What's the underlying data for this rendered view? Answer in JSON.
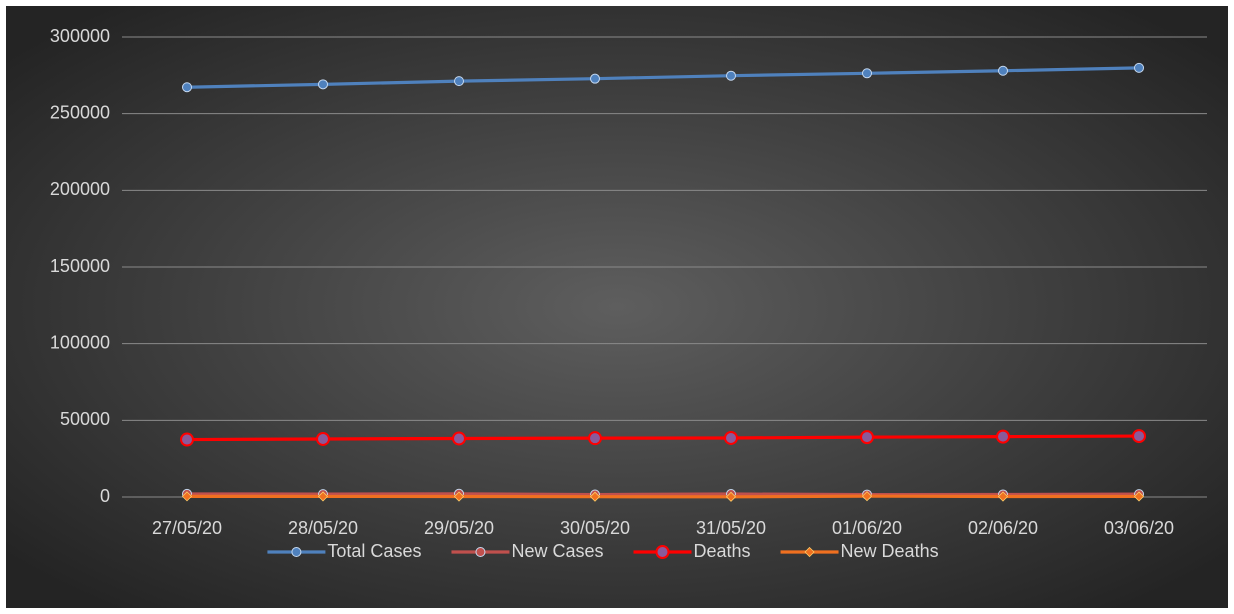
{
  "chart_data": {
    "type": "line",
    "categories": [
      "27/05/20",
      "28/05/20",
      "29/05/20",
      "30/05/20",
      "31/05/20",
      "01/06/20",
      "02/06/20",
      "03/06/20"
    ],
    "series": [
      {
        "name": "Total Cases",
        "color": "#4f81bd",
        "marker": "circle",
        "values": [
          267240,
          269127,
          271222,
          272826,
          274762,
          276332,
          277985,
          279856
        ]
      },
      {
        "name": "New Cases",
        "color": "#c0504d",
        "marker": "circle",
        "values": [
          2013,
          1887,
          2095,
          1604,
          1936,
          1570,
          1653,
          1871
        ]
      },
      {
        "name": "Deaths",
        "color": "#ff0000",
        "marker": "circle",
        "values": [
          37460,
          37837,
          38161,
          38376,
          38489,
          39045,
          39369,
          39728
        ]
      },
      {
        "name": "New Deaths",
        "color": "#f07020",
        "marker": "diamond",
        "values": [
          412,
          377,
          324,
          215,
          113,
          556,
          324,
          359
        ]
      }
    ],
    "ylim": [
      0,
      300000
    ],
    "yticks": [
      0,
      50000,
      100000,
      150000,
      200000,
      250000,
      300000
    ],
    "grid": true,
    "legend": "bottom"
  }
}
